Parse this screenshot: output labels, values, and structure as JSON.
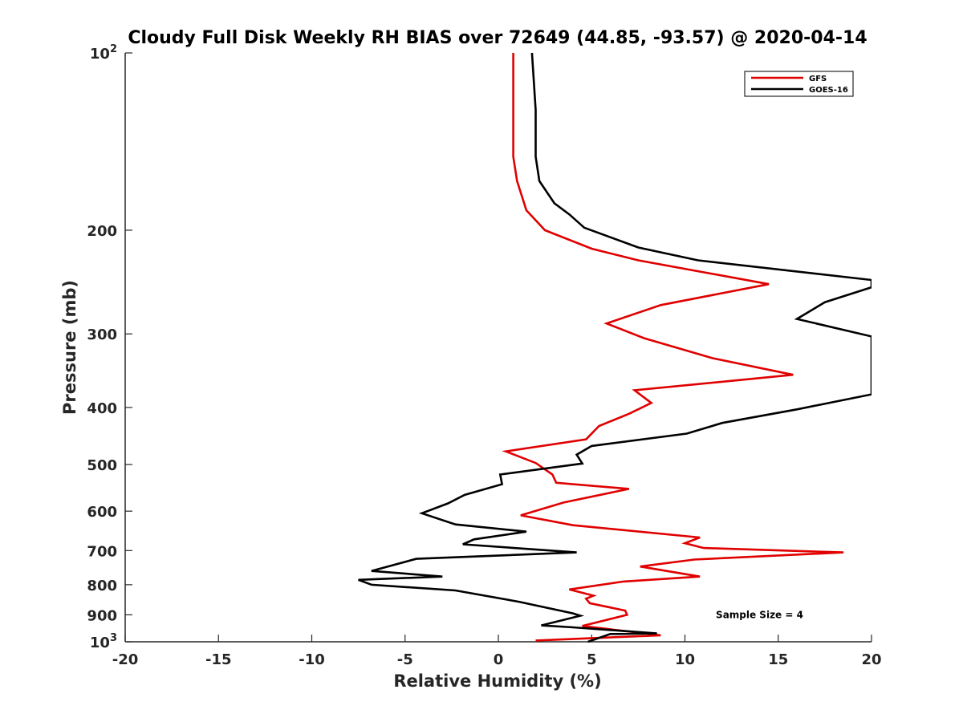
{
  "chart_data": {
    "type": "line",
    "title": "Cloudy Full Disk Weekly RH BIAS over 72649 (44.85, -93.57) @ 2020-04-14",
    "xlabel": "Relative Humidity (%)",
    "ylabel": "Pressure (mb)",
    "xlim": [
      -20,
      20
    ],
    "ylim": [
      100,
      1000
    ],
    "y_scale": "log",
    "y_reversed": true,
    "grid": false,
    "legend_position": "top-right",
    "x_ticks": [
      -20,
      -15,
      -10,
      -5,
      0,
      5,
      10,
      15,
      20
    ],
    "x_tick_labels": [
      "-20",
      "-15",
      "-10",
      "-5",
      "0",
      "5",
      "10",
      "15",
      "20"
    ],
    "y_ticks": [
      {
        "value": 100,
        "base": "10",
        "exp": "2"
      },
      {
        "value": 200,
        "label": "200"
      },
      {
        "value": 300,
        "label": "300"
      },
      {
        "value": 400,
        "label": "400"
      },
      {
        "value": 500,
        "label": "500"
      },
      {
        "value": 600,
        "label": "600"
      },
      {
        "value": 700,
        "label": "700"
      },
      {
        "value": 800,
        "label": "800"
      },
      {
        "value": 900,
        "label": "900"
      },
      {
        "value": 1000,
        "base": "10",
        "exp": "3"
      }
    ],
    "series": [
      {
        "name": "GFS",
        "color": "#e00000",
        "points": [
          [
            0.8,
            100
          ],
          [
            0.8,
            125
          ],
          [
            0.8,
            150
          ],
          [
            1.0,
            165
          ],
          [
            1.5,
            185
          ],
          [
            2.5,
            200
          ],
          [
            5.0,
            215
          ],
          [
            7.5,
            225
          ],
          [
            14.5,
            247
          ],
          [
            8.7,
            268
          ],
          [
            5.8,
            288
          ],
          [
            7.8,
            305
          ],
          [
            11.5,
            330
          ],
          [
            15.8,
            352
          ],
          [
            7.3,
            374
          ],
          [
            8.2,
            393
          ],
          [
            7.0,
            410
          ],
          [
            5.4,
            430
          ],
          [
            4.7,
            453
          ],
          [
            0.4,
            475
          ],
          [
            2.0,
            497
          ],
          [
            2.9,
            520
          ],
          [
            3.1,
            537
          ],
          [
            7.0,
            550
          ],
          [
            3.5,
            580
          ],
          [
            1.2,
            610
          ],
          [
            4.0,
            634
          ],
          [
            10.8,
            665
          ],
          [
            10.0,
            680
          ],
          [
            11.0,
            693
          ],
          [
            18.5,
            705
          ],
          [
            10.5,
            725
          ],
          [
            7.6,
            745
          ],
          [
            10.8,
            775
          ],
          [
            6.7,
            790
          ],
          [
            3.8,
            815
          ],
          [
            5.1,
            835
          ],
          [
            4.7,
            845
          ],
          [
            4.9,
            860
          ],
          [
            6.8,
            885
          ],
          [
            6.9,
            900
          ],
          [
            4.5,
            940
          ],
          [
            8.7,
            975
          ],
          [
            2.0,
            995
          ]
        ]
      },
      {
        "name": "GOES-16",
        "color": "#000000",
        "points": [
          [
            1.8,
            100
          ],
          [
            2.0,
            125
          ],
          [
            2.0,
            150
          ],
          [
            2.2,
            165
          ],
          [
            3.0,
            180
          ],
          [
            3.8,
            188
          ],
          [
            4.6,
            198
          ],
          [
            7.5,
            214
          ],
          [
            10.7,
            225
          ],
          [
            20.0,
            243
          ],
          [
            20.0,
            250
          ],
          [
            17.5,
            265
          ],
          [
            16.0,
            283
          ],
          [
            20.0,
            303
          ],
          [
            20.0,
            380
          ],
          [
            16.0,
            403
          ],
          [
            12.0,
            425
          ],
          [
            10.1,
            443
          ],
          [
            5.0,
            465
          ],
          [
            4.2,
            481
          ],
          [
            4.5,
            498
          ],
          [
            0.1,
            520
          ],
          [
            0.2,
            540
          ],
          [
            -1.8,
            563
          ],
          [
            -2.7,
            582
          ],
          [
            -4.1,
            605
          ],
          [
            -2.3,
            632
          ],
          [
            1.5,
            650
          ],
          [
            -1.3,
            670
          ],
          [
            -1.9,
            683
          ],
          [
            4.2,
            705
          ],
          [
            -4.4,
            723
          ],
          [
            -6.8,
            758
          ],
          [
            -3.0,
            775
          ],
          [
            -7.5,
            785
          ],
          [
            -6.8,
            800
          ],
          [
            -2.3,
            818
          ],
          [
            1.1,
            855
          ],
          [
            4.0,
            895
          ],
          [
            4.4,
            903
          ],
          [
            2.3,
            938
          ],
          [
            4.0,
            945
          ],
          [
            8.5,
            968
          ],
          [
            6.0,
            970
          ],
          [
            4.8,
            1000
          ]
        ]
      }
    ],
    "annotations": [
      {
        "text": "Sample Size = 4",
        "x": 14,
        "y": 900
      }
    ]
  }
}
